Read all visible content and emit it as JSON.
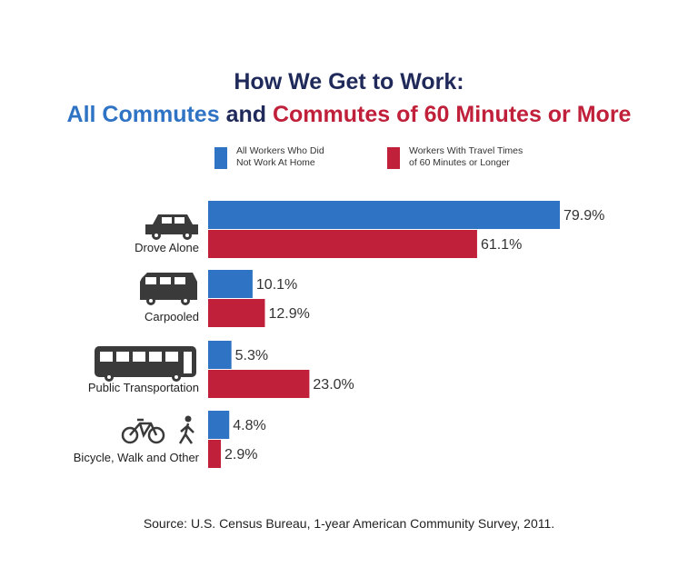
{
  "title": {
    "line1": "How We Get to Work:",
    "line2_part1": "All Commutes",
    "line2_part2": " and ",
    "line2_part3": "Commutes of 60 Minutes or More"
  },
  "legend": {
    "all_workers": "All Workers Who Did\nNot Work At Home",
    "long_commute": "Workers With Travel Times\nof 60 Minutes or Longer"
  },
  "source": "Source: U.S. Census Bureau, 1-year American Community Survey, 2011.",
  "colors": {
    "blue": "#2f73c4",
    "red": "#c0203a",
    "icon": "#3a3a3a"
  },
  "chart_data": {
    "type": "bar",
    "orientation": "horizontal",
    "categories": [
      "Drove Alone",
      "Carpooled",
      "Public Transportation",
      "Bicycle, Walk and Other"
    ],
    "category_icons": [
      "car-icon",
      "van-icon",
      "bus-icon",
      "bicycle-walker-icon"
    ],
    "series": [
      {
        "name": "All Workers Who Did Not Work At Home",
        "values": [
          79.9,
          10.1,
          5.3,
          4.8
        ],
        "labels": [
          "79.9%",
          "10.1%",
          "5.3%",
          "4.8%"
        ]
      },
      {
        "name": "Workers With Travel Times of 60 Minutes or Longer",
        "values": [
          61.1,
          12.9,
          23.0,
          2.9
        ],
        "labels": [
          "61.1%",
          "12.9%",
          "23.0%",
          "2.9%"
        ]
      }
    ],
    "xlim": [
      0,
      80
    ],
    "grid": false,
    "legend": "top"
  }
}
